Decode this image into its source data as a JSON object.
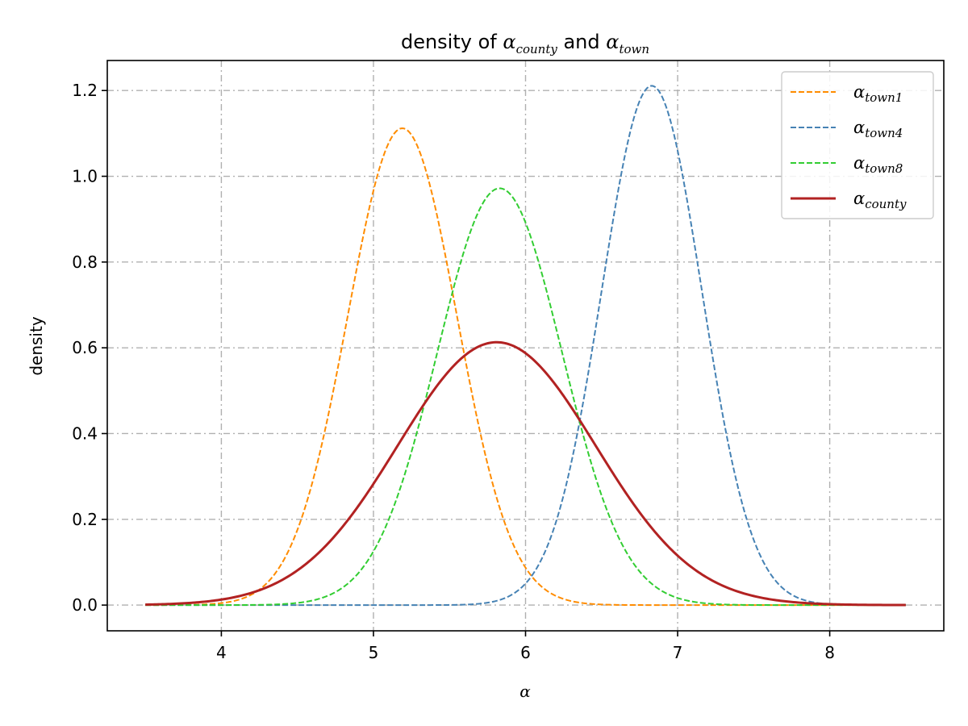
{
  "chart_data": {
    "type": "line",
    "title": {
      "prefix": "density of ",
      "sym1": "α",
      "sub1": "county",
      "middle": " and ",
      "sym2": "α",
      "sub2": "town"
    },
    "xlabel": "α",
    "ylabel": "density",
    "xlim": [
      3.25,
      8.75
    ],
    "ylim": [
      -0.06,
      1.27
    ],
    "xticks": [
      4,
      5,
      6,
      7,
      8
    ],
    "xtick_labels": [
      "4",
      "5",
      "6",
      "7",
      "8"
    ],
    "yticks": [
      0.0,
      0.2,
      0.4,
      0.6,
      0.8,
      1.0,
      1.2
    ],
    "ytick_labels": [
      "0.0",
      "0.2",
      "0.4",
      "0.6",
      "0.8",
      "1.0",
      "1.2"
    ],
    "grid": true,
    "legend_position": "top-right",
    "x_range": [
      3.5,
      8.5
    ],
    "series": [
      {
        "legend_sym": "α",
        "legend_sub": "town1",
        "color": "#ff8c00",
        "style": "dashed",
        "peak_x": 5.19,
        "peak_y": 1.112,
        "sd": 0.359
      },
      {
        "legend_sym": "α",
        "legend_sub": "town4",
        "color": "#4682b4",
        "style": "dashed",
        "peak_x": 6.83,
        "peak_y": 1.211,
        "sd": 0.329
      },
      {
        "legend_sym": "α",
        "legend_sub": "town8",
        "color": "#32cd32",
        "style": "dashed",
        "peak_x": 5.83,
        "peak_y": 0.972,
        "sd": 0.41
      },
      {
        "legend_sym": "α",
        "legend_sub": "county",
        "color": "#b22222",
        "style": "solid",
        "peak_x": 5.81,
        "peak_y": 0.613,
        "sd": 0.651
      }
    ]
  }
}
